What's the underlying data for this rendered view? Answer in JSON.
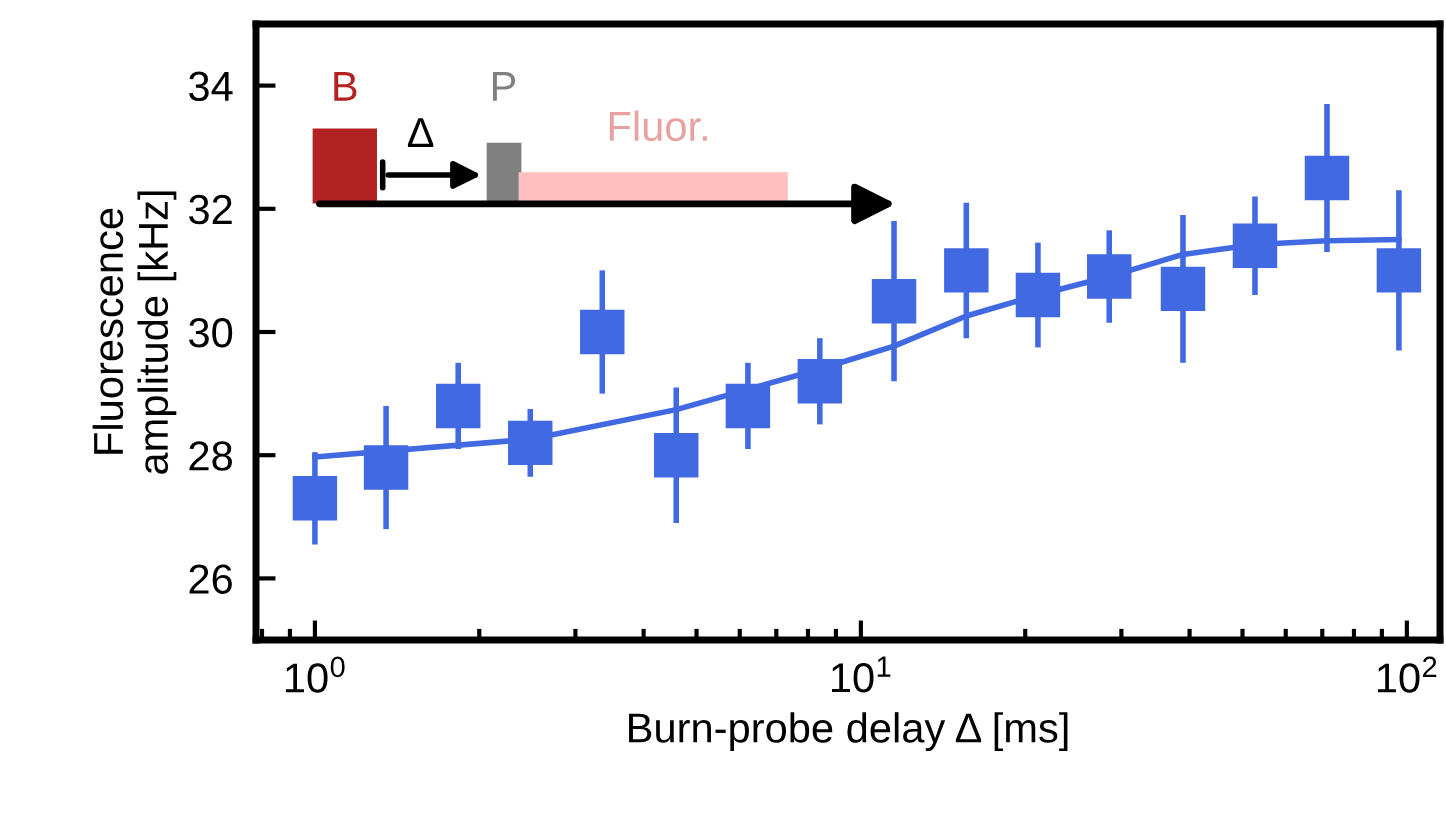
{
  "chart_data": {
    "type": "scatter",
    "xlabel": "Burn-probe delay Δ [ms]",
    "ylabel": "Fluorescence\namplitude [kHz]",
    "log": "x",
    "xlim": [
      0.78,
      115
    ],
    "ylim": [
      25,
      35
    ],
    "xticks": [
      {
        "value": 1,
        "label": "10$^{0}$"
      },
      {
        "value": 10,
        "label": "10$^{1}$"
      },
      {
        "value": 100,
        "label": "10$^{2}$"
      }
    ],
    "yticks": [
      26,
      28,
      30,
      32,
      34
    ],
    "grid": false,
    "legend": false,
    "marker": "square",
    "x": [
      1,
      1.35,
      1.83,
      2.48,
      3.36,
      4.59,
      6.21,
      8.41,
      11.5,
      15.6,
      21.1,
      28.5,
      38.9,
      52.7,
      71.4,
      96.7
    ],
    "series": [
      {
        "color": "#4169e1",
        "values": [
          27.3,
          27.8,
          28.8,
          28.2,
          30.0,
          28.0,
          28.8,
          29.2,
          30.5,
          31.0,
          30.6,
          30.9,
          30.7,
          31.4,
          32.5,
          31.0
        ],
        "errors": [
          0.75,
          1.0,
          0.7,
          0.55,
          1.0,
          1.1,
          0.7,
          0.7,
          1.3,
          1.1,
          0.85,
          0.75,
          1.2,
          0.8,
          1.2,
          1.3
        ]
      },
      {
        "type": "line",
        "color": "#4169e1",
        "line_style": "solid",
        "marker": "none",
        "x": [
          1,
          2.48,
          4.59,
          8.41,
          11.5,
          15.6,
          21.1,
          28.5,
          38.9,
          52.7,
          71.4,
          96.7
        ],
        "values": [
          27.97,
          28.26,
          28.74,
          29.4,
          29.77,
          30.26,
          30.6,
          30.9,
          31.26,
          31.42,
          31.48,
          31.5
        ]
      }
    ],
    "annotations": [
      "B",
      "Δ",
      "P",
      "Fluor."
    ]
  }
}
